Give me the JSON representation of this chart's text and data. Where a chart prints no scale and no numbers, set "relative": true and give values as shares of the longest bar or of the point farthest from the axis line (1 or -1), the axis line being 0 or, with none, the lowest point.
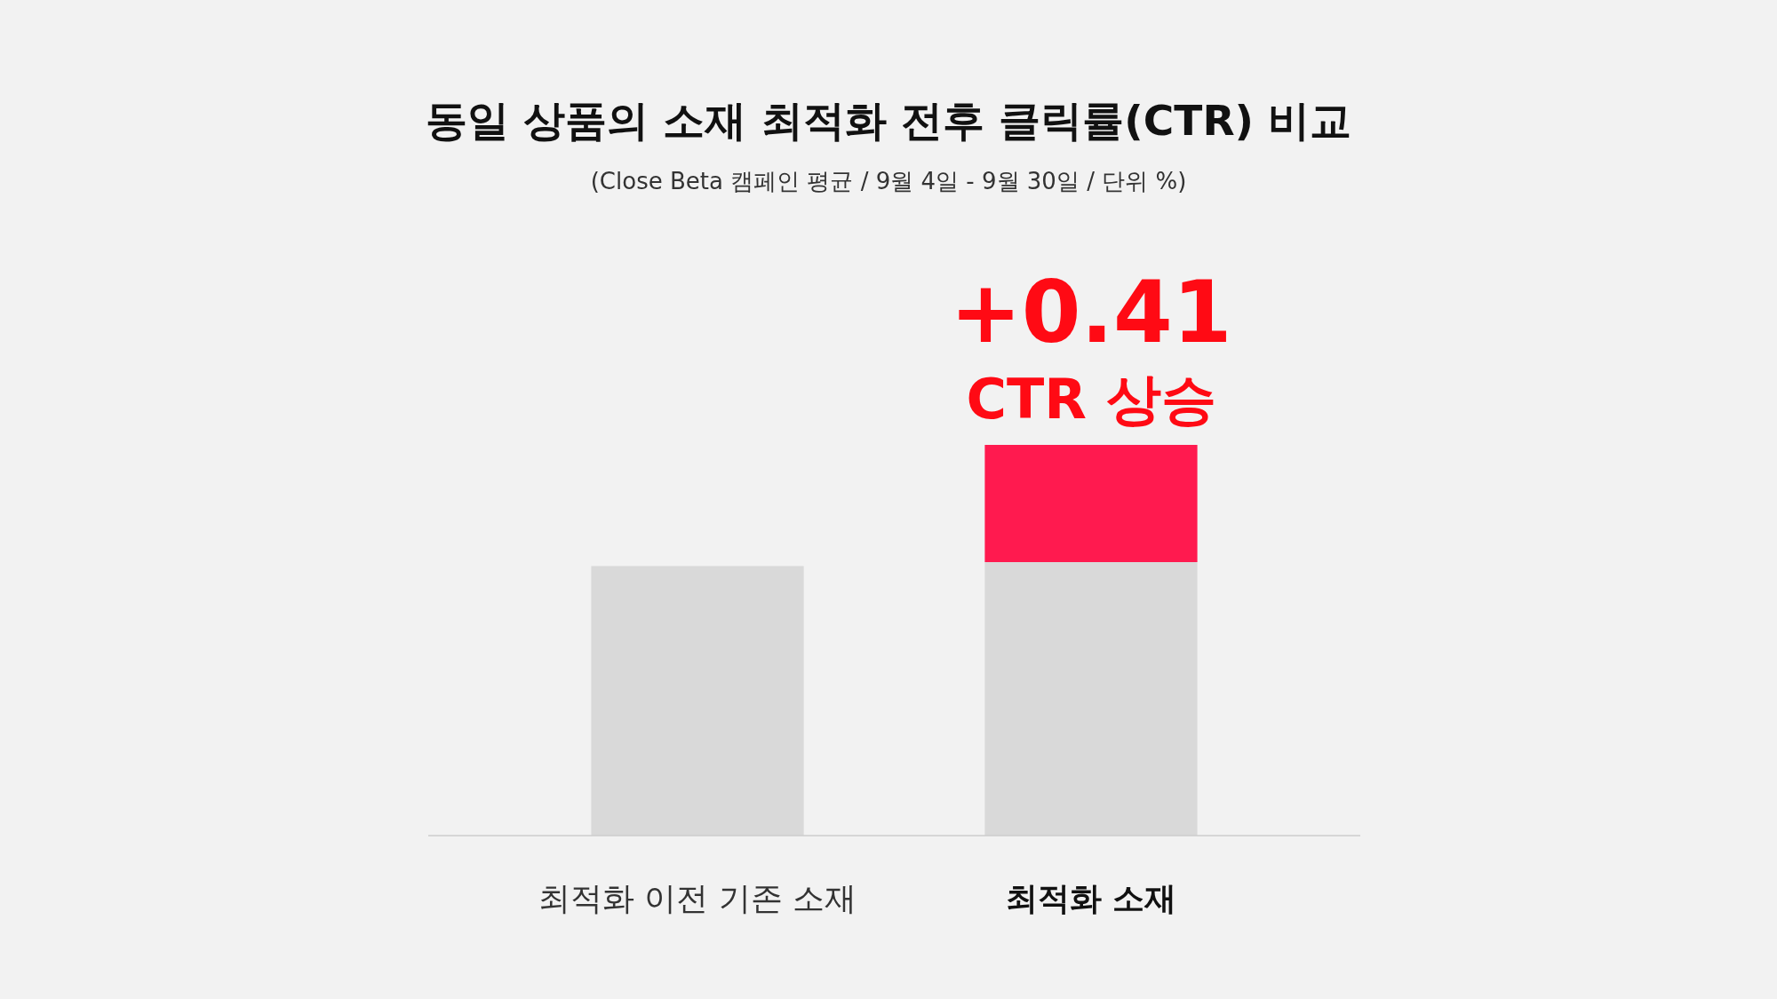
{
  "chart_data": {
    "type": "bar",
    "title": "동일 상품의 소재 최적화 전후 클릭률(CTR) 비교",
    "subtitle": "(Close Beta 캠페인 평균 / 9월 4일 - 9월 30일 / 단위 %)",
    "categories": [
      "최적화 이전 기존 소재",
      "최적화 소재"
    ],
    "stacked": true,
    "relative": true,
    "series": [
      {
        "color": "#d9d9d9",
        "values": [
          0.69,
          0.7
        ]
      },
      {
        "color": "#ff1a4f",
        "values": [
          null,
          0.3
        ]
      }
    ],
    "annotations": [
      {
        "text": "+0.41",
        "x": "최적화 소재",
        "y": 1
      },
      {
        "text": "CTR 상승",
        "x": "최적화 소재",
        "y": 1
      }
    ]
  }
}
